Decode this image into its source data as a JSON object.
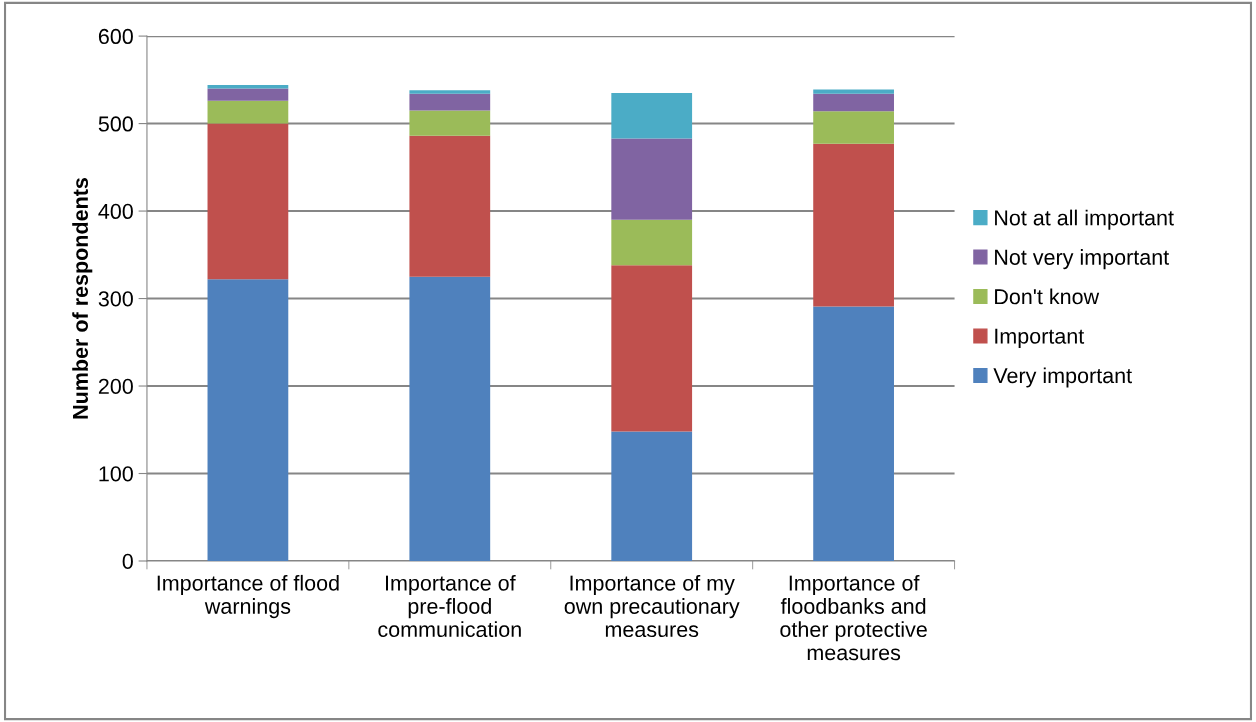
{
  "chart_data": {
    "type": "bar",
    "stacked": true,
    "ylabel": "Number of respondents",
    "categories": [
      "Importance of flood warnings",
      "Importance of pre-flood communication",
      "Importance of my own precautionary measures",
      "Importance of floodbanks and other protective measures"
    ],
    "series": [
      {
        "name": "Very important",
        "color": "#4f81bd",
        "values": [
          322,
          325,
          148,
          291
        ]
      },
      {
        "name": "Important",
        "color": "#c0504d",
        "values": [
          178,
          161,
          190,
          186
        ]
      },
      {
        "name": "Don't know",
        "color": "#9bbb59",
        "values": [
          26,
          29,
          52,
          37
        ]
      },
      {
        "name": "Not very important",
        "color": "#8064a2",
        "values": [
          14,
          19,
          93,
          20
        ]
      },
      {
        "name": "Not at all important",
        "color": "#4bacc6",
        "values": [
          4,
          4,
          52,
          5
        ]
      }
    ],
    "ylim": [
      0,
      600
    ],
    "yticks": [
      0,
      100,
      200,
      300,
      400,
      500,
      600
    ],
    "grid": "y",
    "legend": "right"
  }
}
